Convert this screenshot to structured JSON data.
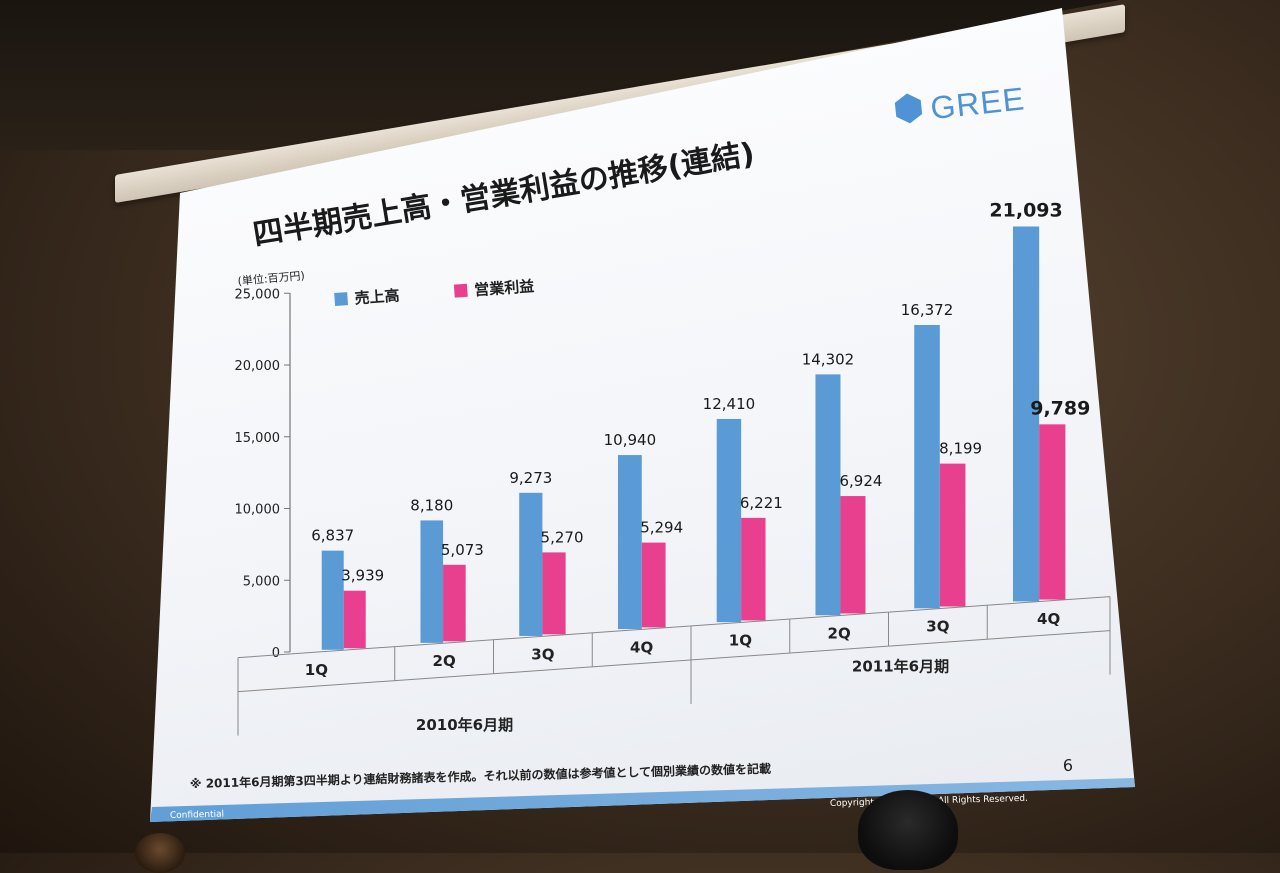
{
  "slide": {
    "title": "四半期売上高・営業利益の推移(連結)",
    "unit": "(単位:百万円)",
    "logo": "GREE",
    "footnote": "※ 2011年6月期第3四半期より連結財務諸表を作成。それ以前の数値は参考値として個別業績の数値を記載",
    "page_number": "6",
    "confidential": "Confidential",
    "copyright": "Copyright © GREE, Inc. All Rights Reserved."
  },
  "colors": {
    "sales": "#5b9bd5",
    "profit": "#e8408e",
    "logo": "#4f92d6"
  },
  "chart_data": {
    "type": "bar",
    "title": "四半期売上高・営業利益の推移(連結)",
    "ylabel": "(単位:百万円)",
    "categories": [
      "1Q",
      "2Q",
      "3Q",
      "4Q",
      "1Q",
      "2Q",
      "3Q",
      "4Q"
    ],
    "groups": [
      {
        "label": "2010年6月期",
        "categories": [
          "1Q",
          "2Q",
          "3Q",
          "4Q"
        ]
      },
      {
        "label": "2011年6月期",
        "categories": [
          "1Q",
          "2Q",
          "3Q",
          "4Q"
        ]
      }
    ],
    "series": [
      {
        "name": "売上高",
        "values": [
          6837,
          8180,
          9273,
          10940,
          12410,
          14302,
          16372,
          21093
        ]
      },
      {
        "name": "営業利益",
        "values": [
          3939,
          5073,
          5270,
          5294,
          6221,
          6924,
          8199,
          9789
        ]
      }
    ],
    "value_labels": {
      "sales": [
        "6,837",
        "8,180",
        "9,273",
        "10,940",
        "12,410",
        "14,302",
        "16,372",
        "21,093"
      ],
      "profit": [
        "3,939",
        "5,073",
        "5,270",
        "5,294",
        "6,221",
        "6,924",
        "8,199",
        "9,789"
      ]
    },
    "ylim": [
      0,
      25000
    ],
    "yticks": [
      0,
      5000,
      10000,
      15000,
      20000,
      25000
    ],
    "ytick_labels": [
      "0",
      "5,000",
      "10,000",
      "15,000",
      "20,000",
      "25,000"
    ],
    "grid": false,
    "legend": "top-left"
  }
}
